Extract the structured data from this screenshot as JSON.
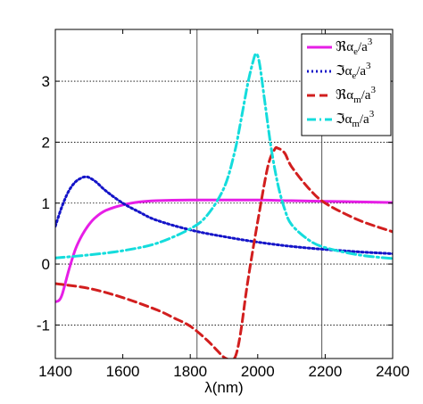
{
  "chart_data": {
    "type": "line",
    "title": "",
    "xlabel": "λ(nm)",
    "ylabel": "",
    "xlim": [
      1400,
      2400
    ],
    "ylim": [
      -1.55,
      3.85
    ],
    "xticks": [
      1400,
      1600,
      1800,
      2000,
      2200,
      2400
    ],
    "yticks": [
      -1,
      0,
      1,
      2,
      3
    ],
    "grid": {
      "horizontal": true,
      "vertical_at": [
        1820,
        2190
      ]
    },
    "legend": {
      "placement": "top-right",
      "entries": [
        {
          "series": 0,
          "prefix": "ℜα",
          "sub": "e",
          "suffix": "/a",
          "sup": "3"
        },
        {
          "series": 1,
          "prefix": "ℑα",
          "sub": "e",
          "suffix": "/a",
          "sup": "3"
        },
        {
          "series": 2,
          "prefix": "ℜα",
          "sub": "m",
          "suffix": "/a",
          "sup": "3"
        },
        {
          "series": 3,
          "prefix": "ℑα",
          "sub": "m",
          "suffix": "/a",
          "sup": "3"
        }
      ]
    },
    "series": [
      {
        "color": "#e61ee6",
        "dash": "solid",
        "x": [
          1400,
          1410,
          1420,
          1440,
          1460,
          1480,
          1500,
          1520,
          1550,
          1600,
          1650,
          1700,
          1800,
          1900,
          2000,
          2100,
          2200,
          2300,
          2400
        ],
        "y": [
          -0.62,
          -0.6,
          -0.5,
          -0.1,
          0.25,
          0.48,
          0.65,
          0.77,
          0.88,
          0.97,
          1.02,
          1.04,
          1.05,
          1.05,
          1.05,
          1.04,
          1.03,
          1.02,
          1.01
        ]
      },
      {
        "color": "#1414c8",
        "dash": "dotted",
        "x": [
          1400,
          1420,
          1440,
          1460,
          1480,
          1490,
          1500,
          1520,
          1550,
          1600,
          1650,
          1700,
          1800,
          1900,
          2000,
          2100,
          2200,
          2300,
          2400
        ],
        "y": [
          0.62,
          0.95,
          1.2,
          1.35,
          1.42,
          1.43,
          1.42,
          1.35,
          1.2,
          1.0,
          0.85,
          0.72,
          0.56,
          0.45,
          0.36,
          0.29,
          0.24,
          0.2,
          0.17
        ]
      },
      {
        "color": "#d21e1e",
        "dash": "dashed",
        "x": [
          1400,
          1500,
          1600,
          1700,
          1750,
          1800,
          1850,
          1880,
          1900,
          1920,
          1935,
          1950,
          1970,
          2000,
          2030,
          2050,
          2060,
          2080,
          2100,
          2150,
          2200,
          2300,
          2400
        ],
        "y": [
          -0.32,
          -0.4,
          -0.55,
          -0.75,
          -0.88,
          -1.02,
          -1.25,
          -1.42,
          -1.53,
          -1.57,
          -1.5,
          -1.1,
          -0.3,
          0.7,
          1.6,
          1.88,
          1.9,
          1.82,
          1.6,
          1.25,
          1.0,
          0.72,
          0.53
        ]
      },
      {
        "color": "#14dcdc",
        "dash": "dashdot",
        "x": [
          1400,
          1500,
          1600,
          1700,
          1800,
          1850,
          1900,
          1930,
          1950,
          1970,
          1985,
          1995,
          2005,
          2020,
          2040,
          2060,
          2080,
          2100,
          2150,
          2200,
          2300,
          2400
        ],
        "y": [
          0.1,
          0.15,
          0.22,
          0.34,
          0.58,
          0.8,
          1.25,
          1.8,
          2.35,
          2.95,
          3.3,
          3.45,
          3.3,
          2.7,
          1.9,
          1.3,
          0.9,
          0.65,
          0.4,
          0.27,
          0.15,
          0.09
        ]
      }
    ]
  }
}
